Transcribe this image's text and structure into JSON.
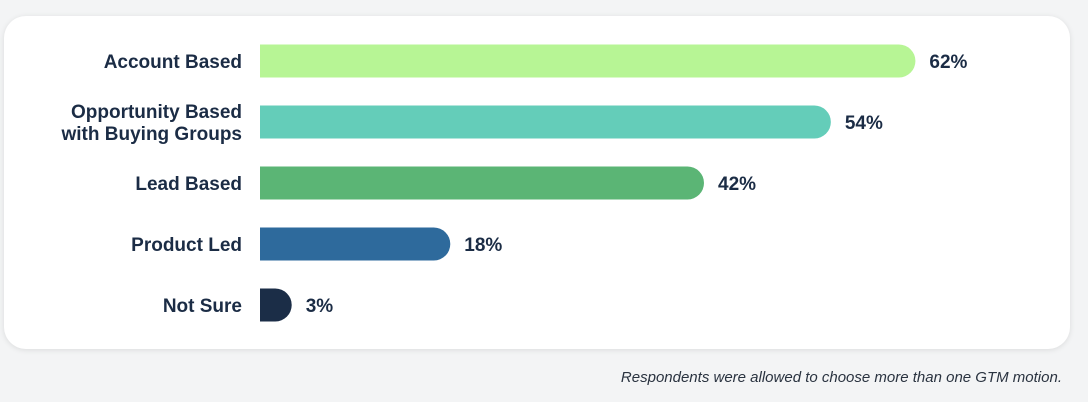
{
  "chart_data": {
    "type": "bar",
    "orientation": "horizontal",
    "categories": [
      "Account Based",
      "Opportunity Based\nwith Buying Groups",
      "Lead Based",
      "Product Led",
      "Not Sure"
    ],
    "values": [
      62,
      54,
      42,
      18,
      3
    ],
    "value_labels": [
      "62%",
      "54%",
      "42%",
      "18%",
      "3%"
    ],
    "colors": [
      "#b7f595",
      "#64cdb9",
      "#5bb575",
      "#2e6a9c",
      "#1b2d47"
    ],
    "xlim": [
      0,
      70
    ],
    "grid": false,
    "legend": "none"
  },
  "footnote": "Respondents were allowed to choose more than one GTM motion."
}
